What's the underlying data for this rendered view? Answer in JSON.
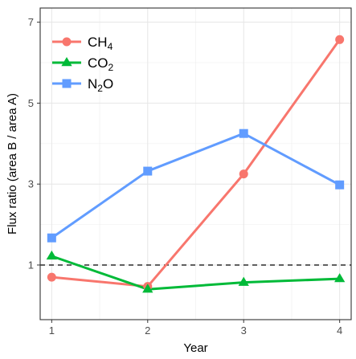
{
  "chart_data": {
    "type": "line",
    "title": "",
    "xlabel": "Year",
    "ylabel": "Flux ratio (area B / area A)",
    "x": [
      1,
      2,
      3,
      4
    ],
    "x_ticks": [
      "1",
      "2",
      "3",
      "4"
    ],
    "y_ticks": [
      "1",
      "3",
      "5",
      "7"
    ],
    "xlim": [
      0.88,
      4.12
    ],
    "ylim": [
      -0.35,
      7.35
    ],
    "grid": true,
    "legend_position": "top-left",
    "reference_line": {
      "y": 1,
      "style": "dashed",
      "color": "#000000"
    },
    "series": [
      {
        "name": "CH4",
        "label_main": "CH",
        "label_sub": "4",
        "color": "#F8766D",
        "marker": "circle",
        "values": [
          0.7,
          0.47,
          3.25,
          6.57
        ]
      },
      {
        "name": "CO2",
        "label_main": "CO",
        "label_sub": "2",
        "color": "#00BA38",
        "marker": "triangle",
        "values": [
          1.22,
          0.4,
          0.57,
          0.66
        ]
      },
      {
        "name": "N2O",
        "label_main": "N",
        "label_sub": "2",
        "label_tail": "O",
        "color": "#619CFF",
        "marker": "square",
        "values": [
          1.67,
          3.32,
          4.25,
          2.98
        ]
      }
    ]
  }
}
